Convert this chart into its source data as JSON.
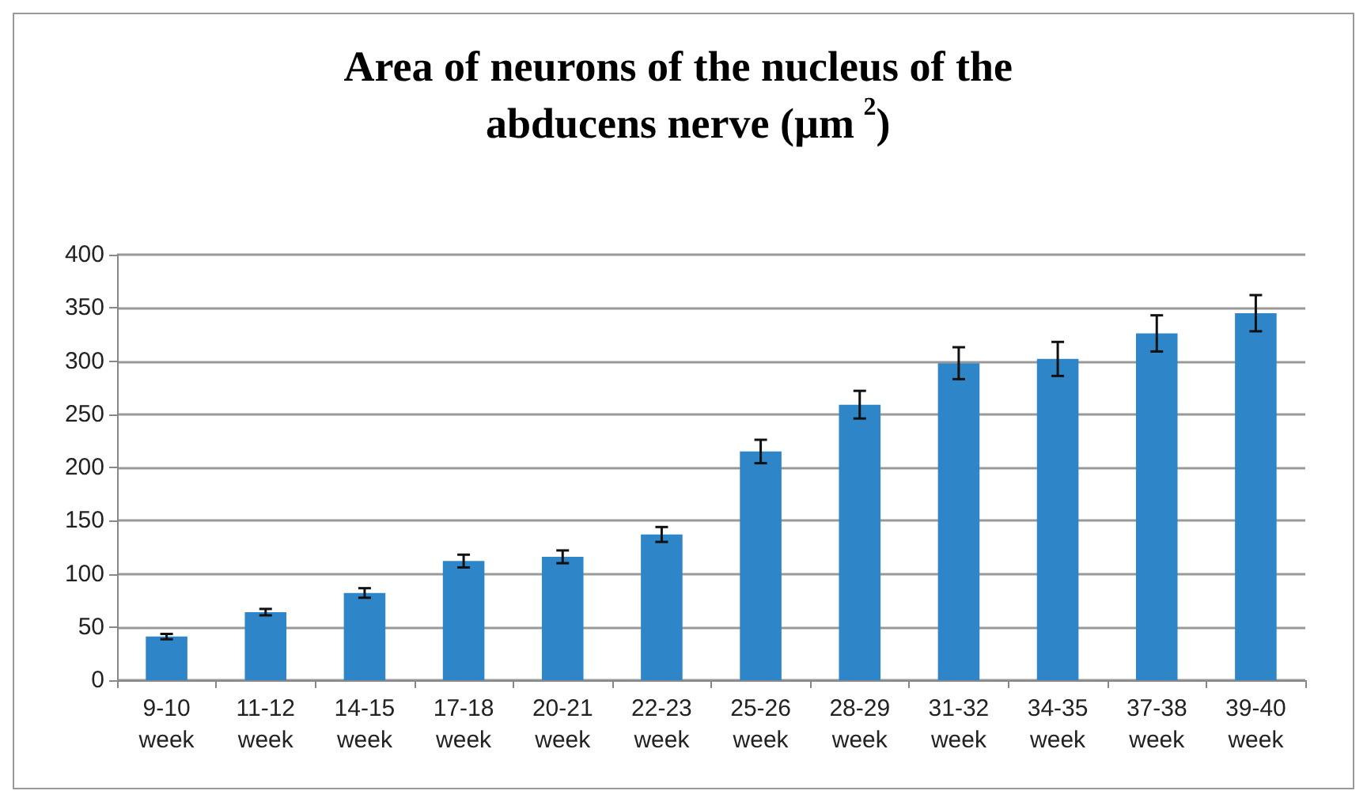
{
  "chart_data": {
    "type": "bar",
    "title": "Area of neurons of the nucleus of the abducens nerve (µm$^{2}$)",
    "categories": [
      "9-10 week",
      "11-12 week",
      "14-15 week",
      "17-18 week",
      "20-21 week",
      "22-23 week",
      "25-26 week",
      "28-29 week",
      "31-32 week",
      "34-35 week",
      "37-38 week",
      "39-40 week"
    ],
    "values": [
      41,
      64,
      82,
      112,
      116,
      137,
      215,
      259,
      298,
      302,
      326,
      345
    ],
    "errors": [
      2.5,
      3,
      4.5,
      6,
      6,
      7,
      11,
      13,
      15,
      16,
      17,
      17
    ],
    "color": "#2e86c8",
    "ylim": [
      0,
      400
    ],
    "yticks": [
      0,
      50,
      100,
      150,
      200,
      250,
      300,
      350,
      400
    ],
    "grid": "y"
  }
}
